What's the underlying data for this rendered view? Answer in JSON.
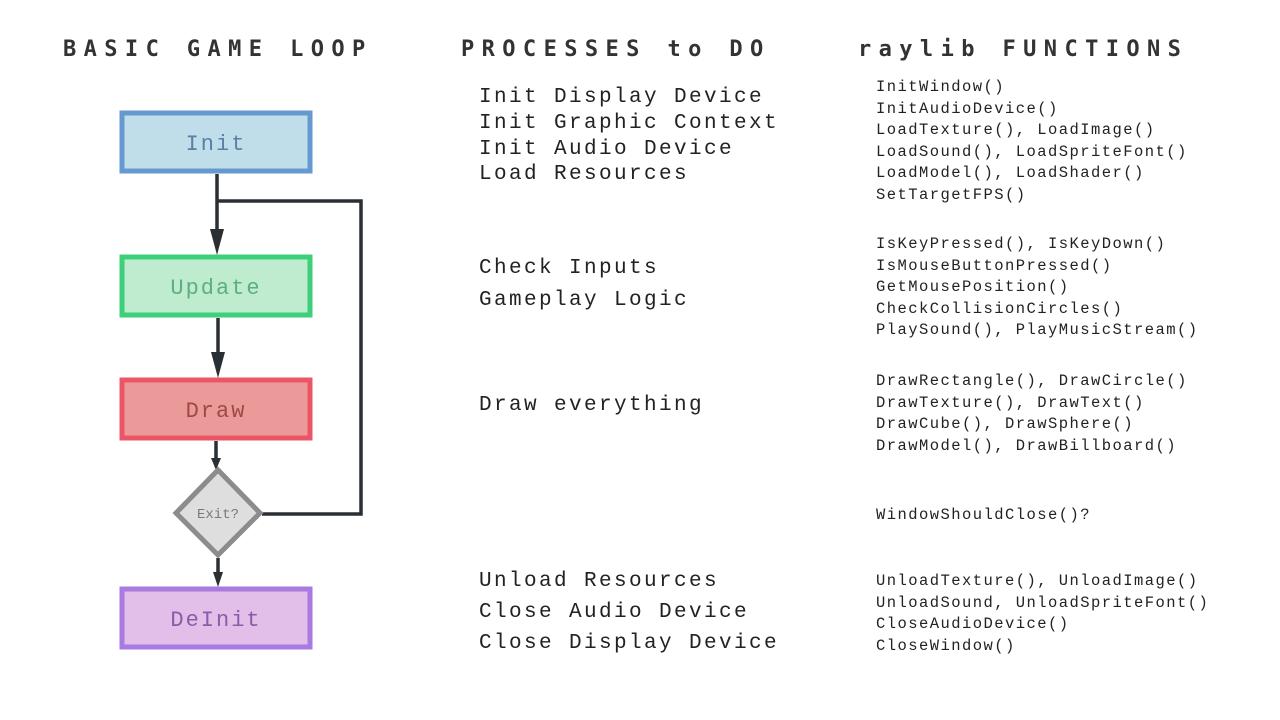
{
  "headings": {
    "loop": "BASIC GAME LOOP",
    "processes": "PROCESSES to DO",
    "functions": "raylib FUNCTIONS"
  },
  "colors": {
    "init": {
      "fill": "#bfdeea",
      "border": "#6699cf",
      "text": "#5b7fa6"
    },
    "update": {
      "fill": "#bfebcf",
      "border": "#3dcf7a",
      "text": "#5caf7f"
    },
    "draw": {
      "fill": "#eb9a9a",
      "border": "#ec5566",
      "text": "#a04848"
    },
    "exit": {
      "fill": "#dedede",
      "border": "#8c8c8c",
      "text": "#7a7a7a"
    },
    "deinit": {
      "fill": "#e1bfe9",
      "border": "#a97ae0",
      "text": "#8a5ca8"
    },
    "line": "#2a2f33"
  },
  "flow": {
    "init": "Init",
    "update": "Update",
    "draw": "Draw",
    "exit": "Exit?",
    "deinit": "DeInit"
  },
  "processes": {
    "init": [
      "Init Display Device",
      "Init Graphic Context",
      "Init Audio Device",
      "Load Resources"
    ],
    "update": [
      "Check Inputs",
      "Gameplay Logic"
    ],
    "draw": [
      "Draw everything"
    ],
    "deinit": [
      "Unload Resources",
      "Close Audio Device",
      "Close Display Device"
    ]
  },
  "functions": {
    "init": [
      "InitWindow()",
      "InitAudioDevice()",
      "LoadTexture(), LoadImage()",
      "LoadSound(), LoadSpriteFont()",
      "LoadModel(), LoadShader()",
      "SetTargetFPS()"
    ],
    "update": [
      "IsKeyPressed(), IsKeyDown()",
      "IsMouseButtonPressed()",
      "GetMousePosition()",
      "CheckCollisionCircles()",
      "PlaySound(), PlayMusicStream()"
    ],
    "draw": [
      "DrawRectangle(), DrawCircle()",
      "DrawTexture(), DrawText()",
      "DrawCube(), DrawSphere()",
      "DrawModel(), DrawBillboard()"
    ],
    "exit": [
      "WindowShouldClose()?"
    ],
    "deinit": [
      "UnloadTexture(), UnloadImage()",
      "UnloadSound, UnloadSpriteFont()",
      "CloseAudioDevice()",
      "CloseWindow()"
    ]
  }
}
